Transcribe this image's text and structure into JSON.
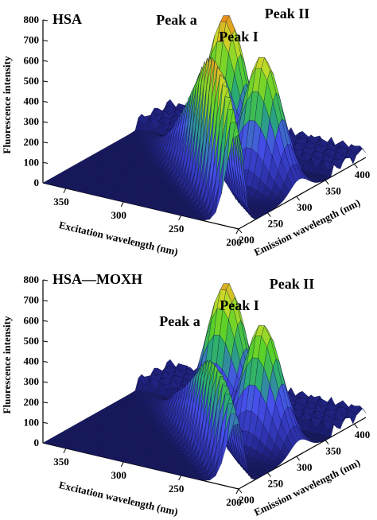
{
  "chart_data": [
    {
      "type": "surface3d",
      "panel_label": "HSA",
      "ylabel": "Fluorescence intensity",
      "xlabel_excitation": "Excitation wavelength (nm)",
      "xlabel_emission": "Emission wavelength (nm)",
      "z_ticks": [
        "0",
        "100",
        "200",
        "300",
        "400",
        "500",
        "600",
        "700",
        "800"
      ],
      "zlim": [
        0,
        800
      ],
      "excitation_ticks": [
        "350",
        "300",
        "250",
        "200"
      ],
      "excitation_range": [
        200,
        370
      ],
      "emission_ticks": [
        "200",
        "250",
        "300",
        "350",
        "400"
      ],
      "emission_range": [
        200,
        420
      ],
      "peaks": [
        {
          "label": "Peak a",
          "intensity": 720
        },
        {
          "label": "Peak I",
          "intensity": 640
        },
        {
          "label": "Peak II",
          "intensity": 720
        }
      ]
    },
    {
      "type": "surface3d",
      "panel_label": "HSA—MOXH",
      "ylabel": "Fluorescence intensity",
      "xlabel_excitation": "Excitation wavelength (nm)",
      "xlabel_emission": "Emission wavelength (nm)",
      "z_ticks": [
        "0",
        "100",
        "200",
        "300",
        "400",
        "500",
        "600",
        "700",
        "800"
      ],
      "zlim": [
        0,
        800
      ],
      "excitation_ticks": [
        "350",
        "300",
        "250",
        "200"
      ],
      "excitation_range": [
        200,
        370
      ],
      "emission_ticks": [
        "200",
        "250",
        "300",
        "350",
        "400"
      ],
      "emission_range": [
        200,
        420
      ],
      "peaks": [
        {
          "label": "Peak a",
          "intensity": 500
        },
        {
          "label": "Peak I",
          "intensity": 600
        },
        {
          "label": "Peak II",
          "intensity": 680
        }
      ]
    }
  ]
}
